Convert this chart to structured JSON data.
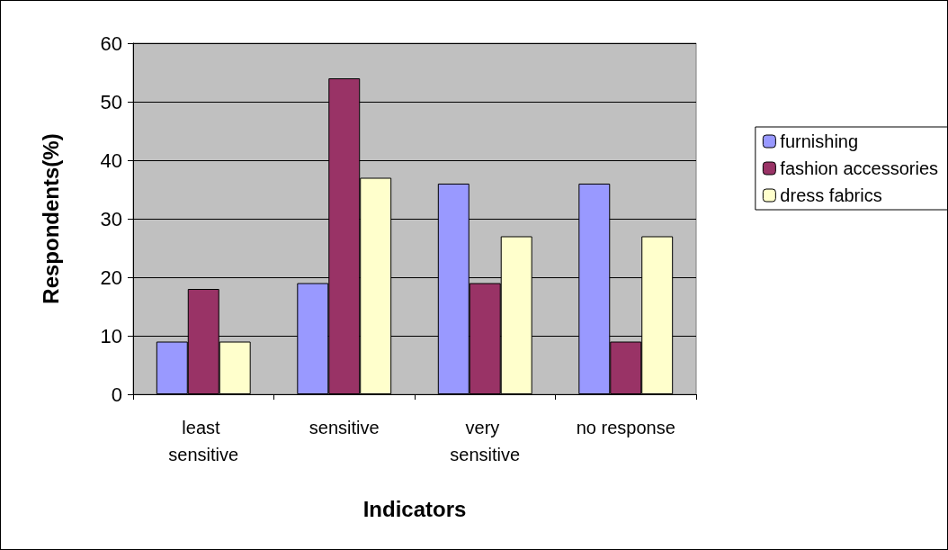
{
  "chart_data": {
    "type": "bar",
    "xlabel": "Indicators",
    "ylabel": "Respondents(%)",
    "categories": [
      "least sensitive",
      "sensitive",
      "very sensitive",
      "no response"
    ],
    "series": [
      {
        "name": "furnishing",
        "color": "#9999ff",
        "values": [
          9,
          19,
          36,
          36
        ]
      },
      {
        "name": "fashion accessories",
        "color": "#993366",
        "values": [
          18,
          54,
          19,
          9
        ]
      },
      {
        "name": "dress fabrics",
        "color": "#ffffcc",
        "values": [
          9,
          37,
          27,
          27
        ]
      }
    ],
    "ylim": [
      0,
      60
    ],
    "yticks": [
      0,
      10,
      20,
      30,
      40,
      50,
      60
    ],
    "grid": "y",
    "legend": "right"
  }
}
